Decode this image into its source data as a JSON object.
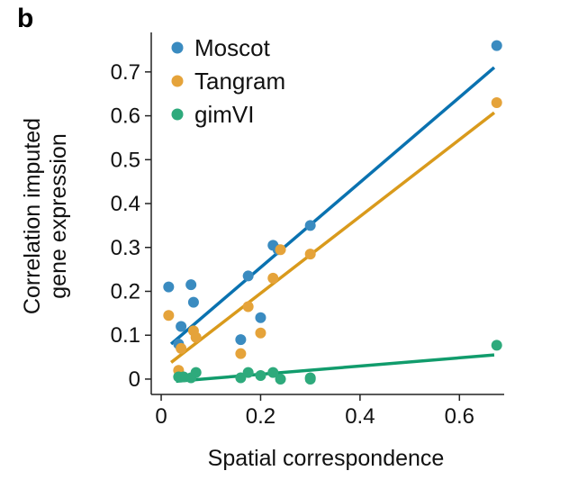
{
  "panel_label": "b",
  "chart_data": {
    "type": "scatter",
    "xlabel": "Spatial correspondence",
    "ylabel": [
      "Correlation imputed",
      "gene expression"
    ],
    "xlim": [
      -0.02,
      0.69
    ],
    "ylim": [
      -0.035,
      0.79
    ],
    "xticks": [
      0,
      0.2,
      0.4,
      0.6
    ],
    "xtick_labels": [
      "0",
      "0.2",
      "0.4",
      "0.6"
    ],
    "yticks": [
      0,
      0.1,
      0.2,
      0.3,
      0.4,
      0.5,
      0.6,
      0.7
    ],
    "ytick_labels": [
      "0",
      "0.1",
      "0.2",
      "0.3",
      "0.4",
      "0.5",
      "0.6",
      "0.7"
    ],
    "legend_position": "top-left",
    "grid": false,
    "series": [
      {
        "name": "Moscot",
        "color": "#3a8bc0",
        "line_color": "#0a72b0",
        "points": [
          [
            0.015,
            0.21
          ],
          [
            0.04,
            0.12
          ],
          [
            0.035,
            0.08
          ],
          [
            0.06,
            0.215
          ],
          [
            0.065,
            0.175
          ],
          [
            0.16,
            0.09
          ],
          [
            0.175,
            0.235
          ],
          [
            0.2,
            0.14
          ],
          [
            0.225,
            0.305
          ],
          [
            0.235,
            0.295
          ],
          [
            0.3,
            0.35
          ],
          [
            0.675,
            0.76
          ]
        ],
        "fit": [
          [
            0.02,
            0.08
          ],
          [
            0.67,
            0.71
          ]
        ]
      },
      {
        "name": "Tangram",
        "color": "#e5a33a",
        "line_color": "#d99a1c",
        "points": [
          [
            0.015,
            0.145
          ],
          [
            0.04,
            0.07
          ],
          [
            0.035,
            0.02
          ],
          [
            0.065,
            0.11
          ],
          [
            0.07,
            0.095
          ],
          [
            0.16,
            0.058
          ],
          [
            0.175,
            0.165
          ],
          [
            0.2,
            0.105
          ],
          [
            0.225,
            0.23
          ],
          [
            0.24,
            0.295
          ],
          [
            0.3,
            0.285
          ],
          [
            0.675,
            0.63
          ]
        ],
        "fit": [
          [
            0.02,
            0.038
          ],
          [
            0.67,
            0.607
          ]
        ]
      },
      {
        "name": "gimVI",
        "color": "#2eaa7c",
        "line_color": "#119c6c",
        "points": [
          [
            0.035,
            0.005
          ],
          [
            0.045,
            0.005
          ],
          [
            0.06,
            0.003
          ],
          [
            0.07,
            0.015
          ],
          [
            0.16,
            0.003
          ],
          [
            0.175,
            0.015
          ],
          [
            0.2,
            0.008
          ],
          [
            0.225,
            0.015
          ],
          [
            0.24,
            0
          ],
          [
            0.3,
            0
          ],
          [
            0.3,
            0.003
          ],
          [
            0.675,
            0.077
          ]
        ],
        "fit": [
          [
            0.03,
            -0.005
          ],
          [
            0.67,
            0.055
          ]
        ]
      }
    ]
  }
}
